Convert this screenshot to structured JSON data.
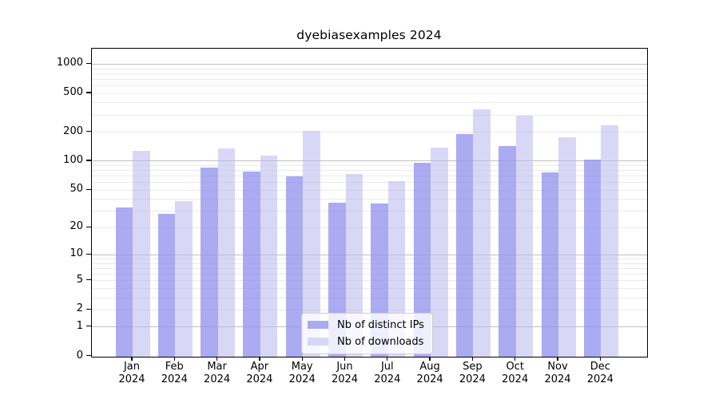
{
  "title": "dyebiasexamples 2024",
  "chart_data": {
    "type": "bar",
    "title": "dyebiasexamples 2024",
    "categories": [
      "Jan 2024",
      "Feb 2024",
      "Mar 2024",
      "Apr 2024",
      "May 2024",
      "Jun 2024",
      "Jul 2024",
      "Aug 2024",
      "Sep 2024",
      "Oct 2024",
      "Nov 2024",
      "Dec 2024"
    ],
    "month_labels": [
      "Jan",
      "Feb",
      "Mar",
      "Apr",
      "May",
      "Jun",
      "Jul",
      "Aug",
      "Sep",
      "Oct",
      "Nov",
      "Dec"
    ],
    "year_label": "2024",
    "series": [
      {
        "name": "Nb of distinct IPs",
        "color": "#aaaaf0",
        "fill_rgba": "rgba(150,150,238,0.8)",
        "values": [
          33,
          28,
          86,
          78,
          70,
          37,
          36,
          97,
          190,
          144,
          76,
          104
        ]
      },
      {
        "name": "Nb of downloads",
        "color": "#d8d8f6",
        "fill_rgba": "rgba(184,184,239,0.55)",
        "values": [
          129,
          38,
          135,
          115,
          205,
          74,
          62,
          137,
          344,
          296,
          177,
          236
        ]
      }
    ],
    "xlabel": "",
    "ylabel": "",
    "y_scale": "log10(value+1)",
    "y_ticks": [
      0,
      1,
      2,
      5,
      10,
      20,
      50,
      100,
      200,
      500,
      1000
    ],
    "ylim": [
      0,
      1390
    ],
    "grid": {
      "orientation": "horizontal",
      "minor_color": "#eaeaea",
      "major_color": "#c0c0c0",
      "major_values": [
        1,
        10,
        100,
        1000
      ]
    },
    "legend_position": "lower center",
    "axis_color": "#000000",
    "background": "#ffffff"
  }
}
